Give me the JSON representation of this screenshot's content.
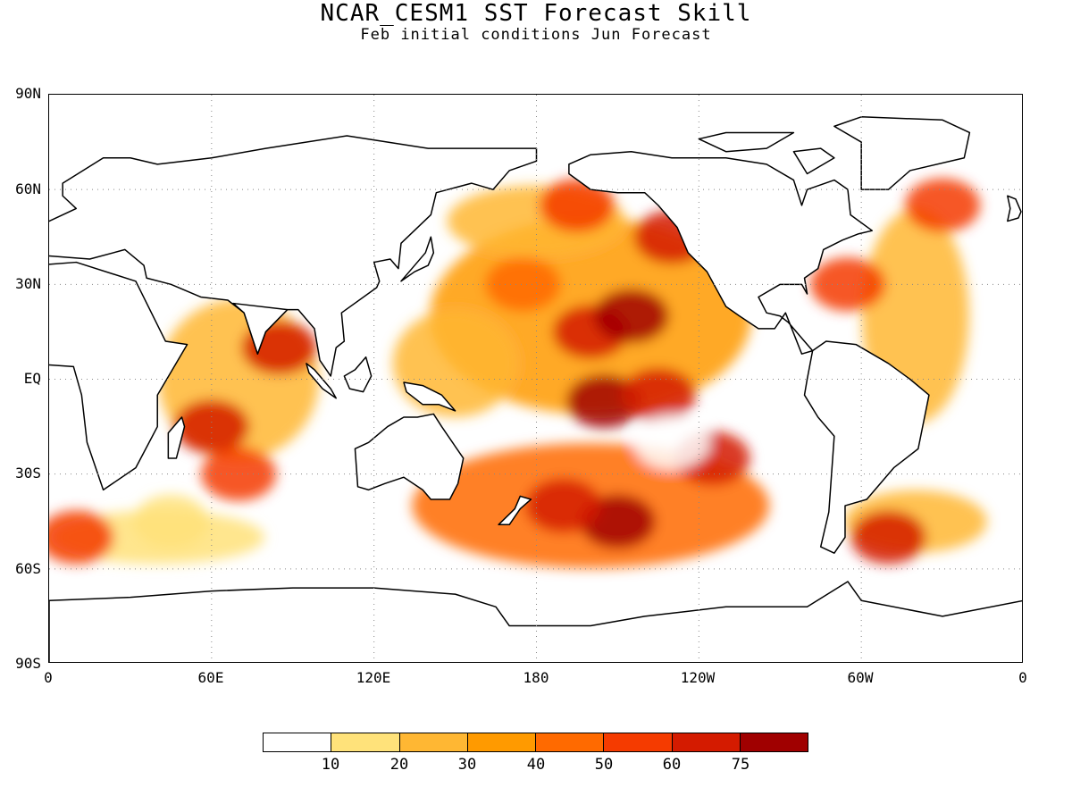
{
  "header": {
    "title": "NCAR_CESM1 SST Forecast Skill",
    "subtitle": "Feb initial conditions  Jun Forecast"
  },
  "axes": {
    "lat_labels": [
      "90N",
      "60N",
      "30N",
      "EQ",
      "30S",
      "60S",
      "90S"
    ],
    "lon_labels": [
      "0",
      "60E",
      "120E",
      "180",
      "120W",
      "60W",
      "0"
    ]
  },
  "legend": {
    "labels": [
      "10",
      "20",
      "30",
      "40",
      "50",
      "60",
      "75"
    ],
    "colors": [
      "#ffffff",
      "#ffe27a",
      "#ffb733",
      "#ff9a00",
      "#ff6a00",
      "#f53b00",
      "#d41b00",
      "#a00000"
    ]
  },
  "chart_data": {
    "type": "heatmap",
    "title": "NCAR_CESM1 SST Forecast Skill",
    "subtitle": "Feb initial conditions  Jun Forecast",
    "x_ticks": [
      "0",
      "60E",
      "120E",
      "180",
      "120W",
      "60W",
      "0"
    ],
    "y_ticks": [
      "90N",
      "60N",
      "30N",
      "EQ",
      "30S",
      "60S",
      "90S"
    ],
    "xlim": [
      0,
      360
    ],
    "ylim": [
      -90,
      90
    ],
    "grid": true,
    "color_levels": [
      10,
      20,
      30,
      40,
      50,
      60,
      75
    ],
    "colormap": [
      "#ffffff",
      "#ffe27a",
      "#ffb733",
      "#ff9a00",
      "#ff6a00",
      "#f53b00",
      "#d41b00",
      "#a00000"
    ],
    "regions": [
      {
        "lon": 200,
        "lat": 15,
        "skill": 65
      },
      {
        "lon": 215,
        "lat": 20,
        "skill": 75
      },
      {
        "lon": 205,
        "lat": -7,
        "skill": 78
      },
      {
        "lon": 225,
        "lat": -5,
        "skill": 70
      },
      {
        "lon": 175,
        "lat": 30,
        "skill": 45
      },
      {
        "lon": 230,
        "lat": 45,
        "skill": 60
      },
      {
        "lon": 195,
        "lat": 55,
        "skill": 55
      },
      {
        "lon": 210,
        "lat": -45,
        "skill": 78
      },
      {
        "lon": 190,
        "lat": -40,
        "skill": 70
      },
      {
        "lon": 245,
        "lat": -25,
        "skill": 60
      },
      {
        "lon": 60,
        "lat": -15,
        "skill": 65
      },
      {
        "lon": 85,
        "lat": 10,
        "skill": 60
      },
      {
        "lon": 70,
        "lat": -30,
        "skill": 55
      },
      {
        "lon": 295,
        "lat": 30,
        "skill": 50
      },
      {
        "lon": 330,
        "lat": 55,
        "skill": 55
      },
      {
        "lon": 310,
        "lat": -50,
        "skill": 60
      },
      {
        "lon": 10,
        "lat": -50,
        "skill": 50
      },
      {
        "lon": 230,
        "lat": -20,
        "skill": 5
      },
      {
        "lon": 45,
        "lat": -45,
        "skill": 10
      }
    ]
  }
}
